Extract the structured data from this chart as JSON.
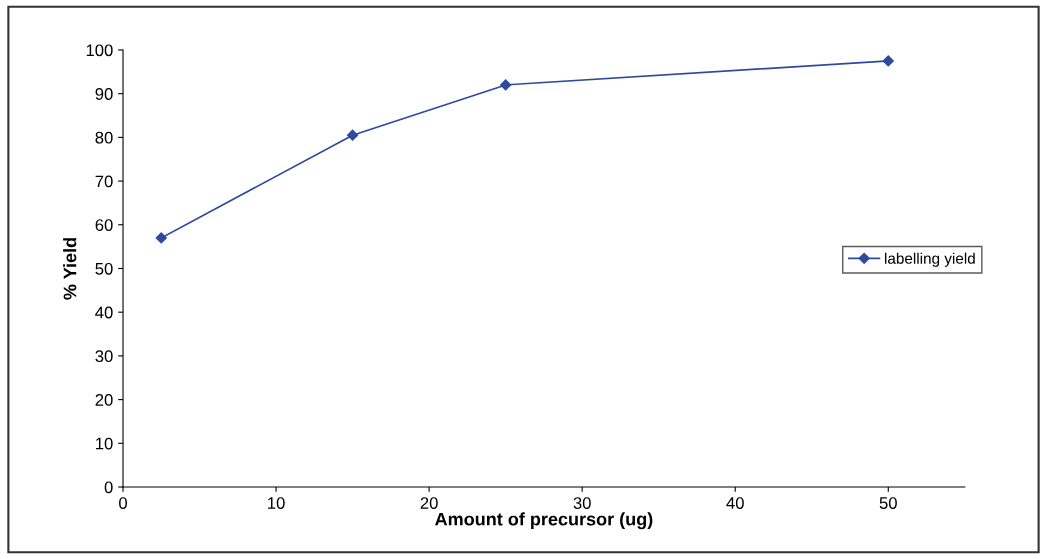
{
  "chart_data": {
    "type": "line",
    "xlabel": "Amount of precursor (ug)",
    "ylabel": "% Yield",
    "x": [
      2.5,
      15,
      25,
      50
    ],
    "series": [
      {
        "name": "labelling yield",
        "color": "#2e4a9e",
        "values": [
          57,
          80.5,
          92,
          97.5
        ]
      }
    ],
    "xlim": [
      0,
      55
    ],
    "xticks": [
      0,
      10,
      20,
      30,
      40,
      50
    ],
    "ylim": [
      0,
      100
    ],
    "yticks": [
      0,
      10,
      20,
      30,
      40,
      50,
      60,
      70,
      80,
      90,
      100
    ],
    "grid": false,
    "legend": "right",
    "marker": "diamond",
    "line_style": "solid"
  }
}
